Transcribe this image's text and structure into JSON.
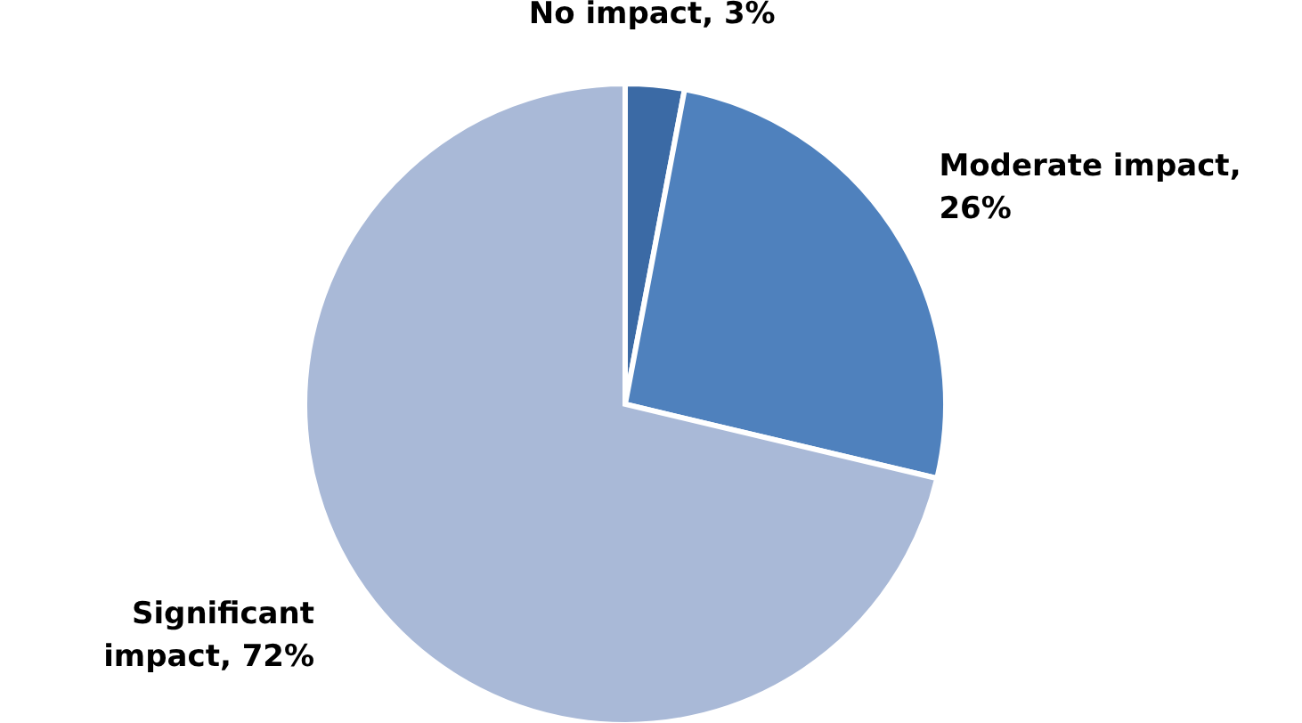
{
  "chart_data": {
    "type": "pie",
    "categories": [
      "No impact, 3%",
      "Moderate impact, 26%",
      "Significant impact, 72%"
    ],
    "values": [
      3,
      26,
      72
    ],
    "colors": [
      "#3b6aa5",
      "#4f81bd",
      "#a9b9d7"
    ],
    "legend": false
  }
}
